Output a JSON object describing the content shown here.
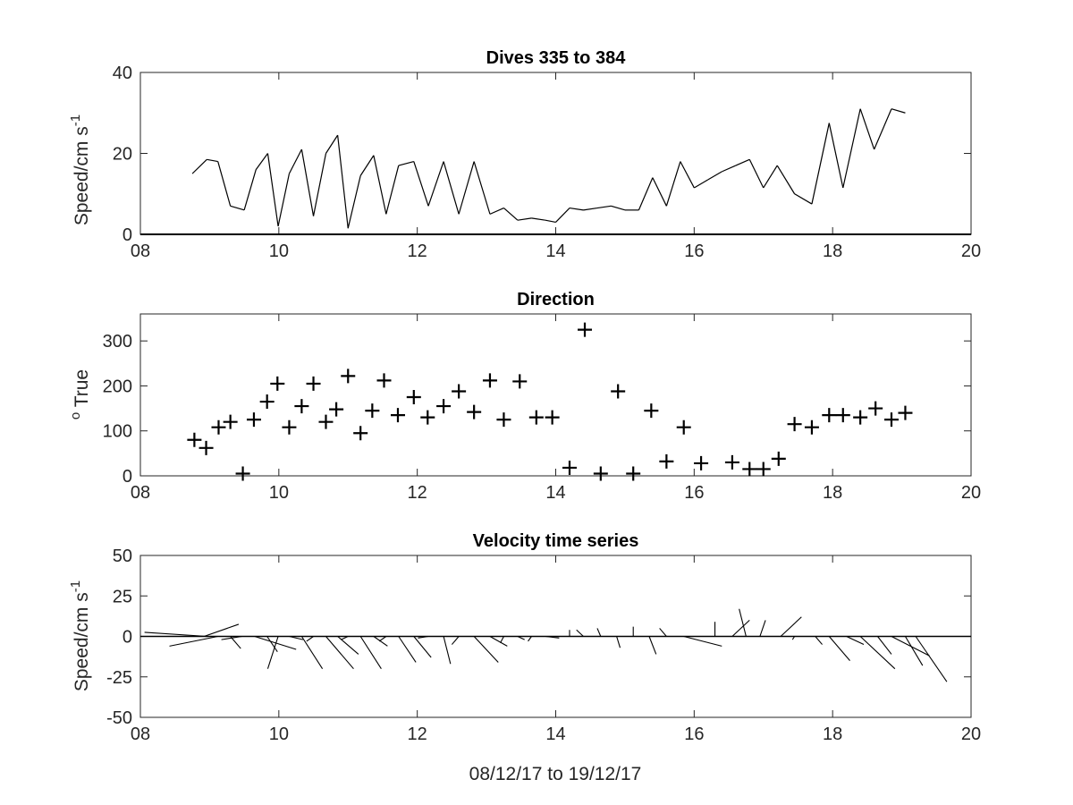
{
  "figure": {
    "xlabel": "08/12/17 to 19/12/17"
  },
  "chart_data": [
    {
      "type": "line",
      "title": "Dives 335 to 384",
      "ylabel": "Speed/cm s",
      "ylabel_superscript": "-1",
      "xlim": [
        8,
        20
      ],
      "ylim": [
        0,
        40
      ],
      "xticks": [
        8,
        10,
        12,
        14,
        16,
        18,
        20
      ],
      "xtick_labels": [
        "08",
        "10",
        "12",
        "14",
        "16",
        "18",
        "20"
      ],
      "yticks": [
        0,
        20,
        40
      ],
      "ytick_labels": [
        "0",
        "20",
        "40"
      ],
      "grid": false,
      "series": [
        {
          "color": "#000000",
          "x": [
            8.75,
            8.96,
            9.12,
            9.3,
            9.5,
            9.67,
            9.84,
            9.99,
            10.15,
            10.33,
            10.5,
            10.68,
            10.85,
            11.0,
            11.18,
            11.37,
            11.55,
            11.73,
            11.95,
            12.16,
            12.38,
            12.6,
            12.82,
            13.05,
            13.25,
            13.45,
            13.65,
            13.85,
            14.0,
            14.2,
            14.4,
            14.6,
            14.8,
            15.0,
            15.2,
            15.4,
            15.6,
            15.8,
            16.0,
            16.2,
            16.4,
            16.6,
            16.8,
            17.0,
            17.2,
            17.45,
            17.7,
            17.95,
            18.15,
            18.4,
            18.6,
            18.85,
            19.05
          ],
          "y": [
            15,
            18.5,
            18,
            7,
            6,
            16,
            20,
            2,
            15,
            21,
            4.5,
            20,
            24.5,
            1.5,
            14.5,
            19.5,
            5,
            17,
            18,
            7,
            18,
            5,
            18,
            5,
            6.5,
            3.5,
            4,
            3.5,
            3,
            6.5,
            6,
            6.5,
            7,
            6,
            6,
            14,
            7,
            18,
            11.5,
            13.5,
            15.5,
            17,
            18.5,
            11.5,
            17,
            10,
            7.5,
            27.5,
            11.5,
            31,
            21,
            31,
            30
          ]
        }
      ]
    },
    {
      "type": "scatter",
      "title": "Direction",
      "ylabel": " True",
      "ylabel_superscript": "o",
      "xlim": [
        8,
        20
      ],
      "ylim": [
        0,
        360
      ],
      "xticks": [
        8,
        10,
        12,
        14,
        16,
        18,
        20
      ],
      "xtick_labels": [
        "08",
        "10",
        "12",
        "14",
        "16",
        "18",
        "20"
      ],
      "yticks": [
        0,
        100,
        200,
        300
      ],
      "ytick_labels": [
        "0",
        "100",
        "200",
        "300"
      ],
      "grid": false,
      "marker": "plus",
      "series": [
        {
          "color": "#000000",
          "x": [
            8.78,
            8.95,
            9.13,
            9.3,
            9.48,
            9.64,
            9.83,
            9.98,
            10.15,
            10.33,
            10.5,
            10.68,
            10.83,
            11.0,
            11.18,
            11.35,
            11.52,
            11.72,
            11.95,
            12.15,
            12.38,
            12.6,
            12.82,
            13.05,
            13.25,
            13.48,
            13.72,
            13.95,
            14.2,
            14.42,
            14.65,
            14.9,
            15.12,
            15.38,
            15.6,
            15.85,
            16.1,
            16.55,
            16.8,
            17.0,
            17.22,
            17.45,
            17.7,
            17.95,
            18.15,
            18.4,
            18.62,
            18.85,
            19.05
          ],
          "y": [
            80,
            62,
            108,
            120,
            5,
            125,
            165,
            205,
            108,
            155,
            205,
            120,
            148,
            222,
            95,
            145,
            212,
            135,
            175,
            130,
            155,
            188,
            142,
            212,
            125,
            210,
            130,
            130,
            18,
            325,
            5,
            188,
            5,
            145,
            32,
            108,
            28,
            30,
            15,
            15,
            38,
            115,
            108,
            135,
            135,
            130,
            150,
            125,
            140
          ]
        }
      ]
    },
    {
      "type": "quiver",
      "title": "Velocity time series",
      "ylabel": "Speed/cm s",
      "ylabel_superscript": "-1",
      "xlim": [
        8,
        20
      ],
      "ylim": [
        -50,
        50
      ],
      "xticks": [
        8,
        10,
        12,
        14,
        16,
        18,
        20
      ],
      "xtick_labels": [
        "08",
        "10",
        "12",
        "14",
        "16",
        "18",
        "20"
      ],
      "yticks": [
        -50,
        -25,
        0,
        25,
        50
      ],
      "ytick_labels": [
        "-50",
        "-25",
        "0",
        "25",
        "50"
      ],
      "grid": false,
      "zero_line": true,
      "units_note": "u in days per cm s-1 along x, v in cm s-1 along y",
      "series": [
        {
          "color": "#000000",
          "x": [
            8.92,
            8.96,
            9.12,
            9.3,
            9.47,
            9.65,
            9.83,
            9.99,
            10.15,
            10.33,
            10.5,
            10.68,
            10.85,
            11.0,
            11.18,
            11.37,
            11.55,
            11.73,
            11.95,
            12.16,
            12.38,
            12.6,
            12.82,
            13.05,
            13.25,
            13.45,
            13.65,
            13.85,
            14.2,
            14.4,
            14.65,
            14.88,
            15.12,
            15.35,
            15.6,
            15.85,
            16.3,
            16.55,
            16.75,
            16.95,
            17.25,
            17.45,
            17.75,
            17.95,
            18.2,
            18.4,
            18.65,
            18.85,
            19.05,
            19.2
          ],
          "u": [
            0.5,
            -0.9,
            -0.7,
            0.15,
            -0.3,
            0.6,
            0.15,
            -0.15,
            0.2,
            0.3,
            -0.1,
            0.4,
            0.3,
            -0.1,
            0.3,
            0.2,
            -0.1,
            0.25,
            0.25,
            -0.15,
            0.1,
            -0.1,
            0.35,
            0.25,
            -0.05,
            0.1,
            -0.05,
            0.2,
            0.0,
            -0.1,
            -0.05,
            0.05,
            0.0,
            0.1,
            -0.1,
            0.55,
            0.0,
            0.25,
            -0.1,
            0.08,
            0.3,
            -0.03,
            0.1,
            0.3,
            0.25,
            0.5,
            0.2,
            0.55,
            0.25,
            0.45
          ],
          "v": [
            7.5,
            2.5,
            -6,
            -7.5,
            -2,
            -8,
            -9.5,
            -20,
            -2,
            -20,
            -3,
            -20,
            -11,
            -2,
            -20,
            -6,
            -3,
            -16,
            -13,
            -1,
            -17,
            -5,
            -16,
            -6,
            -4,
            -2,
            -3,
            -1,
            4,
            4,
            5,
            -7,
            6,
            -11,
            5,
            -6,
            9,
            10,
            17,
            10,
            12,
            -2,
            -5,
            -15,
            -5,
            -20,
            -11,
            -12,
            -18,
            -28
          ]
        }
      ]
    }
  ]
}
